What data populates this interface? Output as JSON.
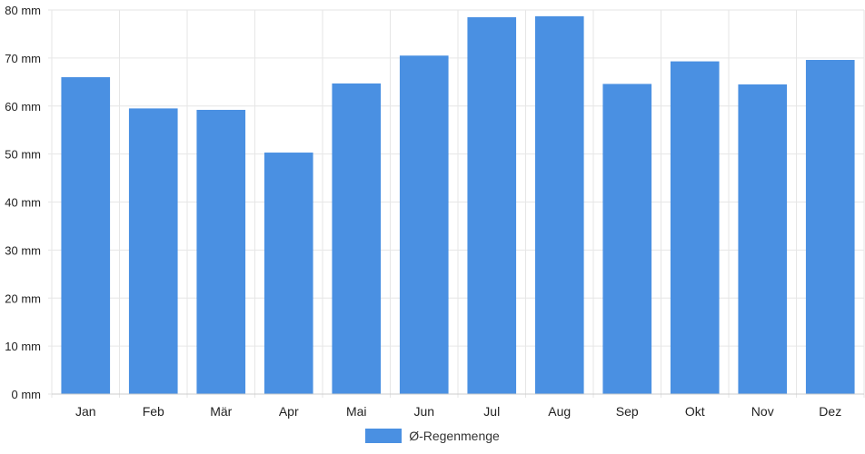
{
  "chart_data": {
    "type": "bar",
    "categories": [
      "Jan",
      "Feb",
      "Mär",
      "Apr",
      "Mai",
      "Jun",
      "Jul",
      "Aug",
      "Sep",
      "Okt",
      "Nov",
      "Dez"
    ],
    "series": [
      {
        "name": "Ø-Regenmenge",
        "values": [
          66.0,
          59.5,
          59.2,
          50.3,
          64.7,
          70.5,
          78.5,
          78.7,
          64.6,
          69.3,
          64.5,
          69.6
        ]
      }
    ],
    "ylim": [
      0,
      80
    ],
    "y_ticks": [
      "0 mm",
      "10 mm",
      "20 mm",
      "30 mm",
      "40 mm",
      "50 mm",
      "60 mm",
      "70 mm",
      "80 mm"
    ],
    "grid": true,
    "legend_position": "bottom",
    "bar_color": "#4a90e2",
    "grid_color": "#e6e6e6"
  }
}
